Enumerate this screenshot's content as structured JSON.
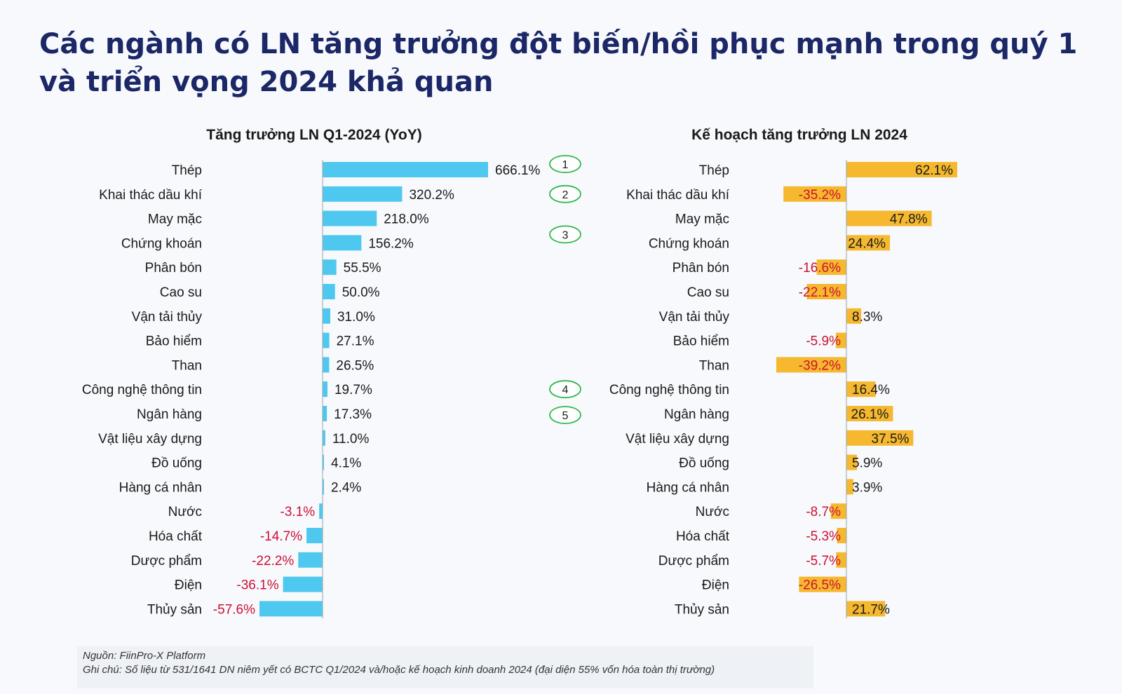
{
  "page": {
    "title_line1": "Các ngành có LN tăng trưởng đột biến/hồi phục mạnh trong quý 1",
    "title_line2": "và triển vọng 2024 khả quan"
  },
  "footer": {
    "source": "Nguồn: FiinPro-X Platform",
    "note": "Ghi chú: Số liệu từ 531/1641 DN niêm yết có BCTC Q1/2024 và/hoặc kế hoạch kinh doanh 2024 (đại diện 55% vốn hóa toàn thị trường)"
  },
  "colors": {
    "left_bar": "#4fc8ef",
    "right_bar": "#f5b82e",
    "negative_text": "#cc1133",
    "positive_text": "#1a1a1a",
    "marker": "#2fb84a"
  },
  "markers": [
    {
      "label": "1",
      "category": "Thép"
    },
    {
      "label": "2",
      "category": "Khai thác dầu khí"
    },
    {
      "label": "3",
      "category": "Chứng khoán"
    },
    {
      "label": "4",
      "category": "Công nghệ thông tin"
    },
    {
      "label": "5",
      "category": "Ngân hàng"
    }
  ],
  "chart_data": [
    {
      "type": "bar",
      "orientation": "horizontal",
      "title": "Tăng trưởng LN Q1-2024 (YoY)",
      "categories": [
        "Thép",
        "Khai thác dầu khí",
        "May mặc",
        "Chứng khoán",
        "Phân bón",
        "Cao su",
        "Vận tải thủy",
        "Bảo hiểm",
        "Than",
        "Công nghệ thông tin",
        "Ngân hàng",
        "Vật liệu xây dựng",
        "Đồ uống",
        "Hàng cá nhân",
        "Nước",
        "Hóa chất",
        "Dược phẩm",
        "Điện",
        "Thủy sản"
      ],
      "values": [
        666.1,
        320.2,
        218.0,
        156.2,
        55.5,
        50.0,
        31.0,
        27.1,
        26.5,
        19.7,
        17.3,
        11.0,
        4.1,
        2.4,
        -3.1,
        -14.7,
        -22.2,
        -36.1,
        -57.6
      ],
      "labels": [
        "666.1%",
        "320.2%",
        "218.0%",
        "156.2%",
        "55.5%",
        "50.0%",
        "31.0%",
        "27.1%",
        "26.5%",
        "19.7%",
        "17.3%",
        "11.0%",
        "4.1%",
        "2.4%",
        "-3.1%",
        "-14.7%",
        "-22.2%",
        "-36.1%",
        "-57.6%"
      ],
      "unit": "%"
    },
    {
      "type": "bar",
      "orientation": "horizontal",
      "title": "Kế hoạch tăng trưởng LN 2024",
      "categories": [
        "Thép",
        "Khai thác dầu khí",
        "May mặc",
        "Chứng khoán",
        "Phân bón",
        "Cao su",
        "Vận tải thủy",
        "Bảo hiểm",
        "Than",
        "Công nghệ thông tin",
        "Ngân hàng",
        "Vật liệu xây dựng",
        "Đồ uống",
        "Hàng cá nhân",
        "Nước",
        "Hóa chất",
        "Dược phẩm",
        "Điện",
        "Thủy sản"
      ],
      "values": [
        62.1,
        -35.2,
        47.8,
        24.4,
        -16.6,
        -22.1,
        8.3,
        -5.9,
        -39.2,
        16.4,
        26.1,
        37.5,
        5.9,
        3.9,
        -8.7,
        -5.3,
        -5.7,
        -26.5,
        21.7
      ],
      "labels": [
        "62.1%",
        "-35.2%",
        "47.8%",
        "24.4%",
        "-16.6%",
        "-22.1%",
        "8.3%",
        "-5.9%",
        "-39.2%",
        "16.4%",
        "26.1%",
        "37.5%",
        "5.9%",
        "3.9%",
        "-8.7%",
        "-5.3%",
        "-5.7%",
        "-26.5%",
        "21.7%"
      ],
      "unit": "%"
    }
  ]
}
